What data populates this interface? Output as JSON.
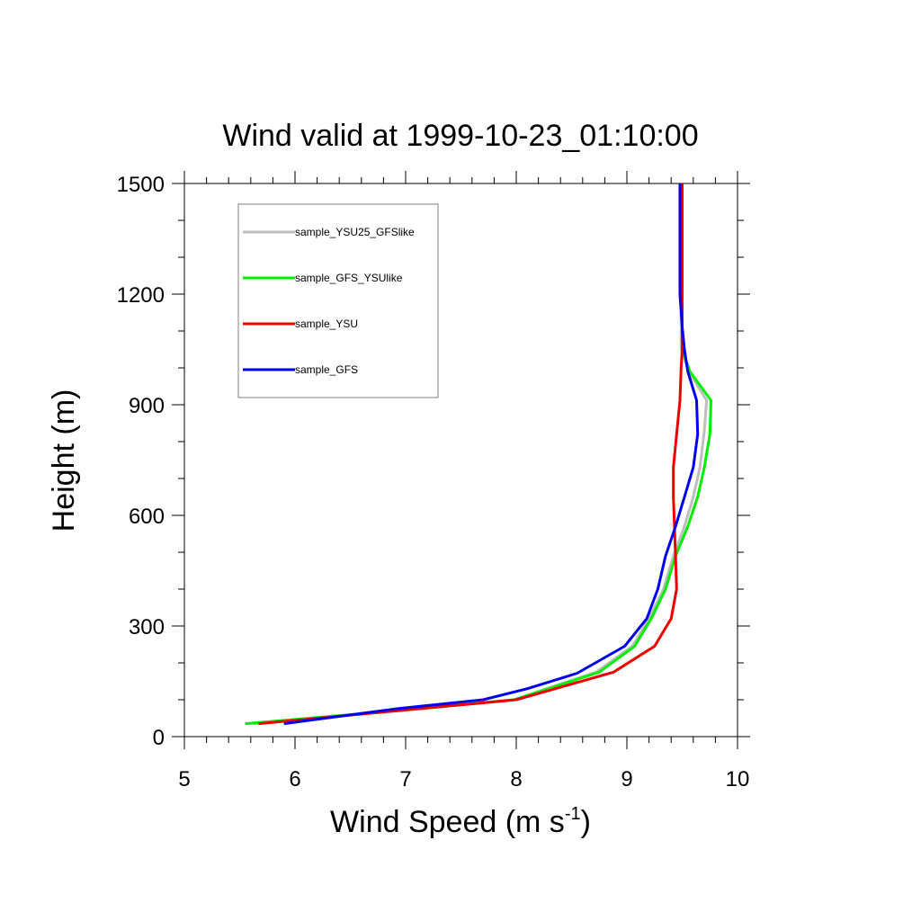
{
  "chart_data": {
    "type": "line",
    "title": "Wind valid at 1999-10-23_01:10:00",
    "xlabel": "Wind Speed (m s",
    "xlabel_sup": "-1",
    "xlabel_end": ")",
    "ylabel": "Height (m)",
    "xlim": [
      5,
      10
    ],
    "ylim": [
      0,
      1500
    ],
    "xticks": [
      5,
      6,
      7,
      8,
      9,
      10
    ],
    "yticks": [
      0,
      300,
      600,
      900,
      1200,
      1500
    ],
    "grid": false,
    "legend_position": "top-left",
    "series": [
      {
        "name": "sample_YSU25_GFSlike",
        "color": "#bebebe",
        "points": [
          [
            5.62,
            35
          ],
          [
            7.1,
            75
          ],
          [
            7.98,
            100
          ],
          [
            8.72,
            175
          ],
          [
            9.05,
            245
          ],
          [
            9.2,
            320
          ],
          [
            9.33,
            400
          ],
          [
            9.42,
            490
          ],
          [
            9.52,
            570
          ],
          [
            9.6,
            650
          ],
          [
            9.66,
            730
          ],
          [
            9.7,
            830
          ],
          [
            9.72,
            912
          ],
          [
            9.56,
            990
          ],
          [
            9.49,
            1050
          ],
          [
            9.49,
            1200
          ],
          [
            9.49,
            1500
          ]
        ]
      },
      {
        "name": "sample_GFS_YSUlike",
        "color": "#00ee00",
        "points": [
          [
            5.55,
            35
          ],
          [
            7.1,
            75
          ],
          [
            7.98,
            100
          ],
          [
            8.75,
            175
          ],
          [
            9.07,
            245
          ],
          [
            9.22,
            320
          ],
          [
            9.35,
            400
          ],
          [
            9.44,
            490
          ],
          [
            9.55,
            570
          ],
          [
            9.64,
            650
          ],
          [
            9.7,
            730
          ],
          [
            9.75,
            820
          ],
          [
            9.76,
            912
          ],
          [
            9.57,
            990
          ],
          [
            9.5,
            1050
          ],
          [
            9.5,
            1200
          ],
          [
            9.5,
            1500
          ]
        ]
      },
      {
        "name": "sample_YSU",
        "color": "#ee0000",
        "points": [
          [
            5.67,
            35
          ],
          [
            7.1,
            75
          ],
          [
            8.0,
            100
          ],
          [
            8.88,
            175
          ],
          [
            9.25,
            245
          ],
          [
            9.4,
            320
          ],
          [
            9.45,
            400
          ],
          [
            9.44,
            490
          ],
          [
            9.43,
            570
          ],
          [
            9.42,
            650
          ],
          [
            9.42,
            730
          ],
          [
            9.45,
            820
          ],
          [
            9.48,
            912
          ],
          [
            9.49,
            1000
          ],
          [
            9.5,
            1050
          ],
          [
            9.5,
            1200
          ],
          [
            9.5,
            1500
          ]
        ]
      },
      {
        "name": "sample_GFS",
        "color": "#0000ee",
        "points": [
          [
            5.9,
            35
          ],
          [
            6.9,
            75
          ],
          [
            7.7,
            100
          ],
          [
            8.1,
            130
          ],
          [
            8.55,
            172
          ],
          [
            8.98,
            245
          ],
          [
            9.18,
            320
          ],
          [
            9.28,
            400
          ],
          [
            9.35,
            490
          ],
          [
            9.44,
            570
          ],
          [
            9.52,
            650
          ],
          [
            9.6,
            730
          ],
          [
            9.64,
            820
          ],
          [
            9.63,
            912
          ],
          [
            9.55,
            990
          ],
          [
            9.52,
            1050
          ],
          [
            9.5,
            1110
          ],
          [
            9.48,
            1200
          ],
          [
            9.48,
            1500
          ]
        ]
      }
    ]
  }
}
